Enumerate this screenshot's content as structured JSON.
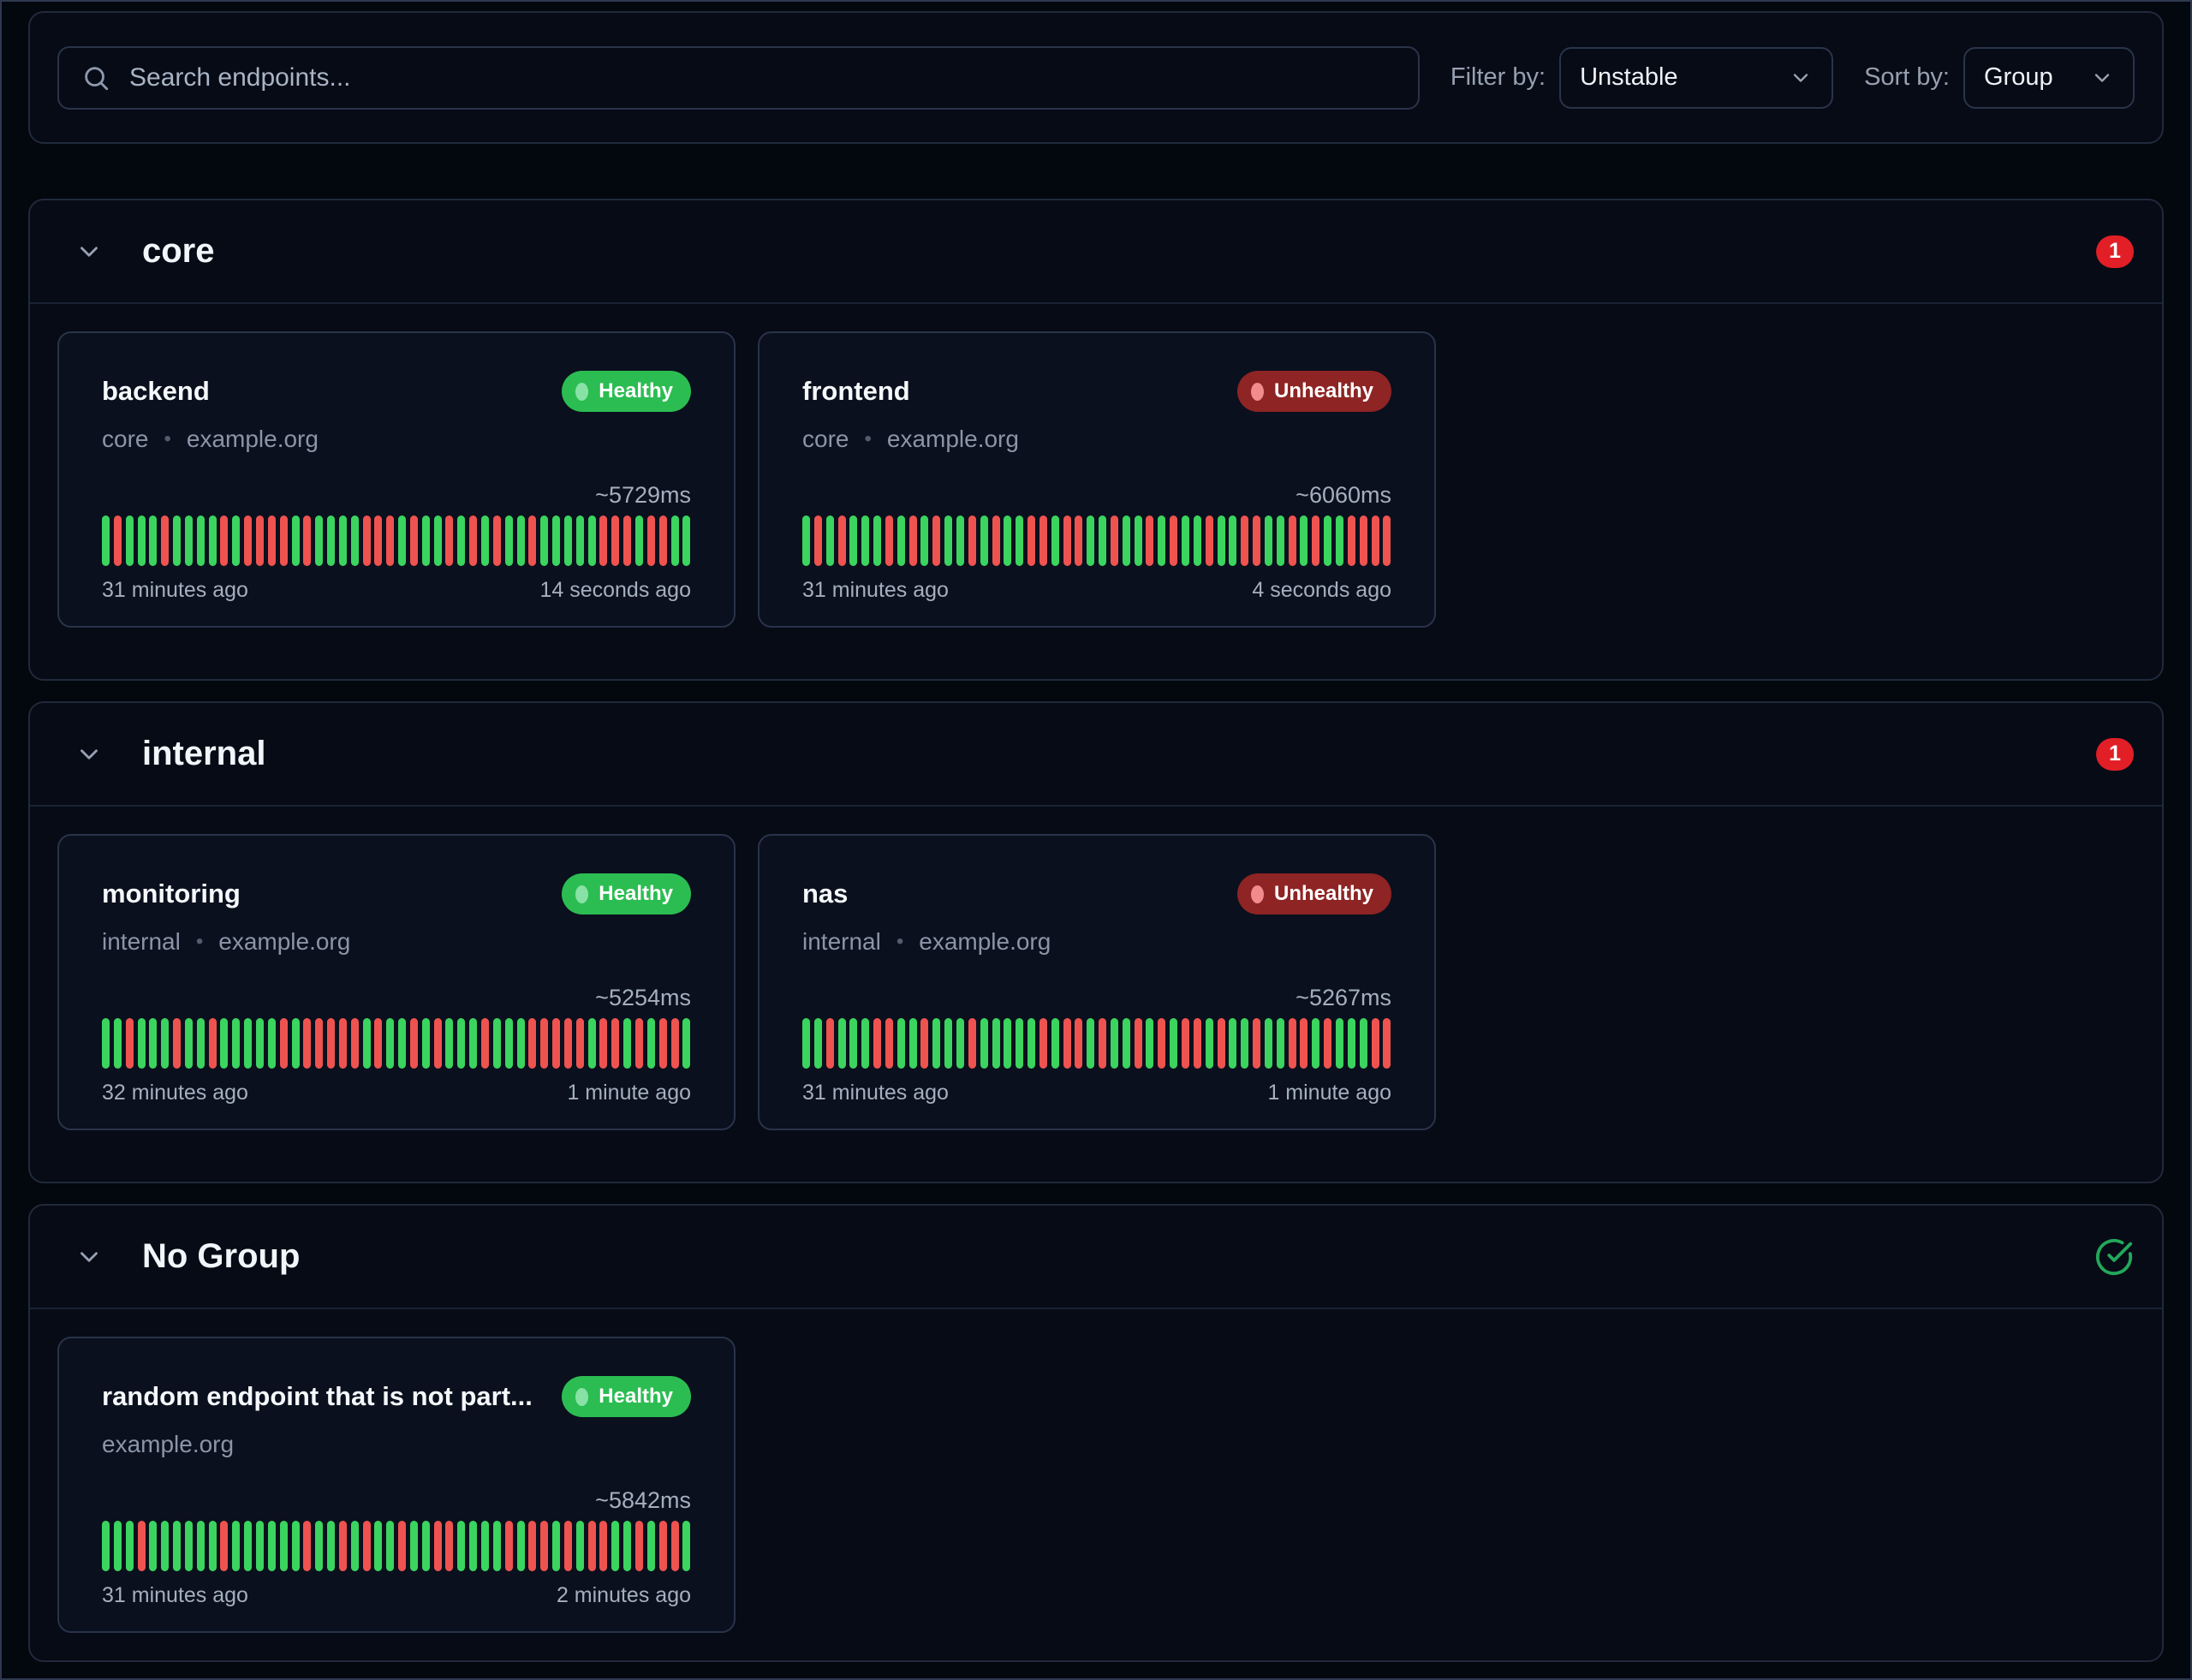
{
  "toolbar": {
    "search_placeholder": "Search endpoints...",
    "filter_label": "Filter by:",
    "filter_value": "Unstable",
    "sort_label": "Sort by:",
    "sort_value": "Group"
  },
  "ui": {
    "separator": "•"
  },
  "colors": {
    "page_bg": "#03070e",
    "panel_bg": "#060b16",
    "panel_border": "#202a3b",
    "card_bg": "#0a101d",
    "card_border": "#293349",
    "input_border": "#2a3449",
    "divider": "#1a2232",
    "frame": "#2e3950",
    "healthy": "#2cbd52",
    "healthy_dot": "#88e2a6",
    "unhealthy": "#8e2424",
    "unhealthy_dot": "#f28b8b",
    "bar_up": "#3bd45f",
    "bar_down": "#ef5350",
    "count": "#e21f26",
    "check": "#23a85a"
  },
  "groups": [
    {
      "name": "core",
      "indicator": {
        "type": "count",
        "value": "1"
      },
      "endpoints": [
        {
          "name": "backend",
          "group": "core",
          "host": "example.org",
          "status": "Healthy",
          "avg": "~5729ms",
          "from": "31 minutes ago",
          "to": "14 seconds ago",
          "history": "GRGGGRGGGGRGRRRRGRGGGGRRRGRGGRGRGRGGRGGGGGRRRGRRGG"
        },
        {
          "name": "frontend",
          "group": "core",
          "host": "example.org",
          "status": "Unhealthy",
          "avg": "~6060ms",
          "from": "31 minutes ago",
          "to": "4 seconds ago",
          "history": "GRGRGGGRGRGRGGRGRGGRRGRRGGRGGRGRGGRGGRRGGRGRGGRRRR"
        }
      ]
    },
    {
      "name": "internal",
      "indicator": {
        "type": "count",
        "value": "1"
      },
      "endpoints": [
        {
          "name": "monitoring",
          "group": "internal",
          "host": "example.org",
          "status": "Healthy",
          "avg": "~5254ms",
          "from": "32 minutes ago",
          "to": "1 minute ago",
          "history": "GGRGGGRGGRGGGGGRGRRRRRGRGGRGRGGGRGGGRRRRRGRRGRGRRG"
        },
        {
          "name": "nas",
          "group": "internal",
          "host": "example.org",
          "status": "Unhealthy",
          "avg": "~5267ms",
          "from": "31 minutes ago",
          "to": "1 minute ago",
          "history": "GGRGGGRRGGRGGGRGGGGGRGRRGRGGRGRGRRGRGGRGGRRGRGGGRR"
        }
      ]
    },
    {
      "name": "No Group",
      "indicator": {
        "type": "check"
      },
      "endpoints": [
        {
          "name": "random endpoint that is not part...",
          "group": null,
          "host": "example.org",
          "status": "Healthy",
          "avg": "~5842ms",
          "from": "31 minutes ago",
          "to": "2 minutes ago",
          "history": "GGGRGGGGGGRGGGGGGRGGRGRGGRGGRRGGGGRGRRGRGRRGGRGRRG"
        }
      ]
    }
  ]
}
